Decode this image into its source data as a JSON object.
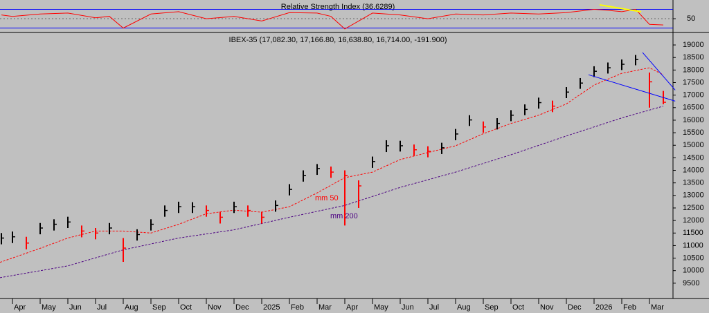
{
  "chart_data": [
    {
      "type": "line",
      "title": "Relative Strength Index (36.6289)",
      "x": [
        -0.4,
        0,
        1,
        2,
        3,
        3.5,
        4,
        5,
        6,
        7,
        8,
        9,
        10,
        11,
        11.5,
        12,
        12.5,
        13,
        14,
        15,
        16,
        17,
        18,
        19,
        20,
        21,
        21.5,
        22,
        22.5,
        23,
        23.5
      ],
      "values": [
        58,
        55,
        60,
        62,
        52,
        55,
        30,
        60,
        65,
        50,
        55,
        45,
        63,
        62,
        55,
        28,
        45,
        62,
        58,
        50,
        60,
        58,
        62,
        60,
        63,
        70,
        68,
        65,
        70,
        38,
        36.6289
      ],
      "color": "#ff0000",
      "levels": [
        30,
        70
      ],
      "level_color": "#0000ff",
      "trendline": {
        "color": "#ffff00",
        "x": [
          21.2,
          22.7
        ],
        "y": [
          79.6,
          64.8
        ]
      },
      "xlim": [
        -0.45,
        23.85
      ],
      "ylim": [
        22,
        90
      ],
      "yticks": [
        50
      ]
    },
    {
      "type": "candlestick",
      "title": "IBEX-35 (17,082.30, 17,166.80, 16,638.80, 16,714.00, -191.900)",
      "x": [
        -0.4,
        0,
        0.5,
        1,
        1.5,
        2,
        2.5,
        3,
        3.5,
        4,
        4.5,
        5,
        5.5,
        6,
        6.5,
        7,
        7.5,
        8,
        8.5,
        9,
        9.5,
        10,
        10.5,
        11,
        11.5,
        12,
        12.5,
        13,
        13.5,
        14,
        14.5,
        15,
        15.5,
        16,
        16.5,
        17,
        17.5,
        18,
        18.5,
        19,
        19.5,
        20,
        20.5,
        21,
        21.5,
        22,
        22.5,
        23,
        23.5
      ],
      "high": [
        11500,
        11560,
        11350,
        11900,
        12050,
        12150,
        11800,
        11700,
        11900,
        11300,
        11650,
        12050,
        12600,
        12750,
        12730,
        12600,
        12350,
        12750,
        12600,
        12350,
        12800,
        13450,
        14000,
        14250,
        14150,
        14000,
        13600,
        14550,
        15200,
        15180,
        15030,
        14960,
        15100,
        15650,
        16200,
        15950,
        16080,
        16400,
        16630,
        16900,
        16780,
        17320,
        17680,
        18150,
        18300,
        18420,
        18600,
        17900,
        17166.8
      ],
      "low": [
        11050,
        11100,
        10850,
        11450,
        11600,
        11700,
        11330,
        11250,
        11450,
        10350,
        11200,
        11600,
        12150,
        12300,
        12300,
        12150,
        11880,
        12300,
        12150,
        11880,
        12350,
        13000,
        13550,
        13820,
        13700,
        11800,
        12500,
        14100,
        14730,
        14750,
        14580,
        14520,
        14650,
        15200,
        15770,
        15500,
        15630,
        15960,
        16200,
        16460,
        16320,
        16880,
        17250,
        17720,
        17860,
        18000,
        18190,
        16500,
        16638.8
      ],
      "close": [
        11300,
        11350,
        11100,
        11700,
        11850,
        11940,
        11580,
        11500,
        11700,
        10900,
        11440,
        11850,
        12400,
        12550,
        12550,
        12400,
        12130,
        12550,
        12400,
        12130,
        12600,
        13240,
        13790,
        14070,
        13930,
        13790,
        13380,
        14350,
        14980,
        14980,
        14820,
        14760,
        14900,
        15450,
        16010,
        15730,
        15870,
        16200,
        16430,
        16700,
        16560,
        17120,
        17480,
        17950,
        18090,
        18230,
        18420,
        17530,
        16714
      ],
      "up_color": "#000000",
      "down_color": "#ff0000",
      "series": [
        {
          "name": "mm 50",
          "color": "#ff0000",
          "x": [
            -0.45,
            1,
            2,
            3,
            4,
            5,
            6,
            7,
            8,
            9,
            10,
            11,
            12,
            13,
            14,
            15,
            16,
            17,
            18,
            19,
            20,
            21,
            22,
            23,
            23.5
          ],
          "values": [
            10330,
            10890,
            11300,
            11580,
            11580,
            11500,
            11850,
            12270,
            12410,
            12330,
            12550,
            13100,
            13710,
            13930,
            14430,
            14710,
            14980,
            15460,
            15870,
            16200,
            16650,
            17400,
            17870,
            18090,
            17810
          ]
        },
        {
          "name": "mm 200",
          "color": "#4b0082",
          "x": [
            -0.45,
            2,
            4,
            6,
            8,
            10,
            12,
            14,
            16,
            18,
            20,
            22,
            23.5
          ],
          "values": [
            9720,
            10190,
            10830,
            11300,
            11630,
            12130,
            12600,
            13320,
            13930,
            14620,
            15370,
            16090,
            16560
          ]
        }
      ],
      "trendlines": [
        {
          "color": "#0000ff",
          "x": [
            22.75,
            23.93
          ],
          "y": [
            18700,
            17200
          ]
        },
        {
          "color": "#0000ff",
          "x": [
            20.8,
            23.93
          ],
          "y": [
            17810,
            16760
          ]
        }
      ],
      "xlim": [
        -0.45,
        23.85
      ],
      "xticks": [
        {
          "value": 0,
          "label": "Apr"
        },
        {
          "value": 1,
          "label": "May"
        },
        {
          "value": 2,
          "label": "Jun"
        },
        {
          "value": 3,
          "label": "Jul"
        },
        {
          "value": 4,
          "label": "Aug"
        },
        {
          "value": 5,
          "label": "Sep"
        },
        {
          "value": 6,
          "label": "Oct"
        },
        {
          "value": 7,
          "label": "Nov"
        },
        {
          "value": 8,
          "label": "Dec"
        },
        {
          "value": 9,
          "label": "2025"
        },
        {
          "value": 10,
          "label": "Feb"
        },
        {
          "value": 11,
          "label": "Mar"
        },
        {
          "value": 12,
          "label": "Apr"
        },
        {
          "value": 13,
          "label": "May"
        },
        {
          "value": 14,
          "label": "Jun"
        },
        {
          "value": 15,
          "label": "Jul"
        },
        {
          "value": 16,
          "label": "Aug"
        },
        {
          "value": 17,
          "label": "Sep"
        },
        {
          "value": 18,
          "label": "Oct"
        },
        {
          "value": 19,
          "label": "Nov"
        },
        {
          "value": 20,
          "label": "Dec"
        },
        {
          "value": 21,
          "label": "2026"
        },
        {
          "value": 22,
          "label": "Feb"
        },
        {
          "value": 23,
          "label": "Mar"
        }
      ],
      "ylim": [
        8890,
        19470
      ],
      "yticks": [
        9500,
        10000,
        10500,
        11000,
        11500,
        12000,
        12500,
        13000,
        13500,
        14000,
        14500,
        15000,
        15500,
        16000,
        16500,
        17000,
        17500,
        18000,
        18500,
        19000
      ]
    }
  ]
}
